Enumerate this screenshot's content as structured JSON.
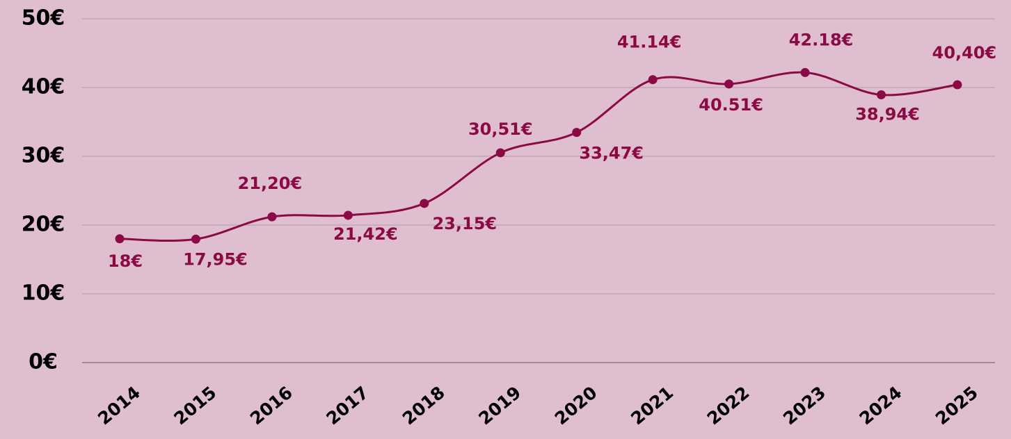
{
  "chart_data": {
    "type": "line",
    "categories": [
      "2014",
      "2015",
      "2016",
      "2017",
      "2018",
      "2019",
      "2020",
      "2021",
      "2022",
      "2023",
      "2024",
      "2025"
    ],
    "series": [
      {
        "color": "#8b0a45",
        "values": [
          18,
          17.95,
          21.2,
          21.42,
          23.15,
          30.51,
          33.47,
          41.14,
          40.51,
          42.18,
          38.94,
          40.4
        ],
        "value_labels": [
          "18€",
          "17,95€",
          "21,20€",
          "21,42€",
          "23,15€",
          "30,51€",
          "33,47€",
          "41.14€",
          "40.51€",
          "42.18€",
          "38,94€",
          "40,40€"
        ]
      }
    ],
    "ylim": [
      0,
      50
    ],
    "yticks": [
      {
        "value": 0,
        "label": "0€"
      },
      {
        "value": 10,
        "label": "10€"
      },
      {
        "value": 20,
        "label": "20€"
      },
      {
        "value": 30,
        "label": "30€"
      },
      {
        "value": 40,
        "label": "40€"
      },
      {
        "value": 50,
        "label": "50€"
      }
    ],
    "grid": true
  }
}
